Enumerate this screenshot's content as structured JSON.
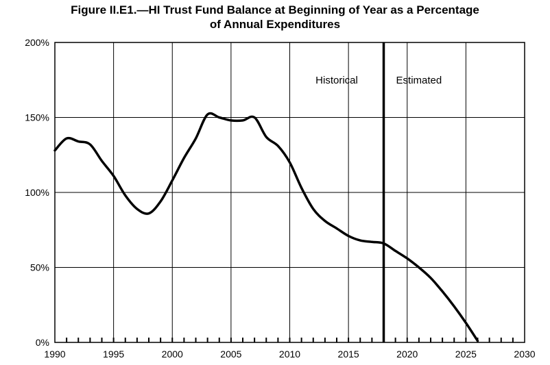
{
  "chart_data": {
    "type": "line",
    "title_line1": "Figure II.E1.—HI Trust Fund Balance at Beginning of Year as a Percentage",
    "title_line2": "of Annual Expenditures",
    "xlabel": "",
    "ylabel": "",
    "xlim": [
      1990,
      2030
    ],
    "ylim": [
      0,
      200
    ],
    "x_ticks": [
      1990,
      1995,
      2000,
      2005,
      2010,
      2015,
      2020,
      2025,
      2030
    ],
    "x_tick_labels": [
      "1990",
      "1995",
      "2000",
      "2005",
      "2010",
      "2015",
      "2020",
      "2025",
      "2030"
    ],
    "y_ticks": [
      0,
      50,
      100,
      150,
      200
    ],
    "y_tick_labels": [
      "0%",
      "50%",
      "100%",
      "150%",
      "200%"
    ],
    "grid": true,
    "divider_year": 2018,
    "annotations": [
      {
        "text": "Historical",
        "x": 2014,
        "y": 175
      },
      {
        "text": "Estimated",
        "x": 2021,
        "y": 175
      }
    ],
    "series": [
      {
        "x": [
          1990,
          1991,
          1992,
          1993,
          1994,
          1995,
          1996,
          1997,
          1998,
          1999,
          2000,
          2001,
          2002,
          2003,
          2004,
          2005,
          2006,
          2007,
          2008,
          2009,
          2010,
          2011,
          2012,
          2013,
          2014,
          2015,
          2016,
          2017,
          2018,
          2019,
          2020,
          2021,
          2022,
          2023,
          2024,
          2025,
          2026
        ],
        "values": [
          128,
          136,
          134,
          132,
          121,
          111,
          98,
          89,
          86,
          94,
          108,
          123,
          136,
          152,
          150,
          148,
          148,
          150,
          137,
          131,
          120,
          103,
          89,
          81,
          76,
          71,
          68,
          67,
          66,
          61,
          56,
          50,
          43,
          34,
          24,
          13,
          1
        ]
      }
    ]
  }
}
